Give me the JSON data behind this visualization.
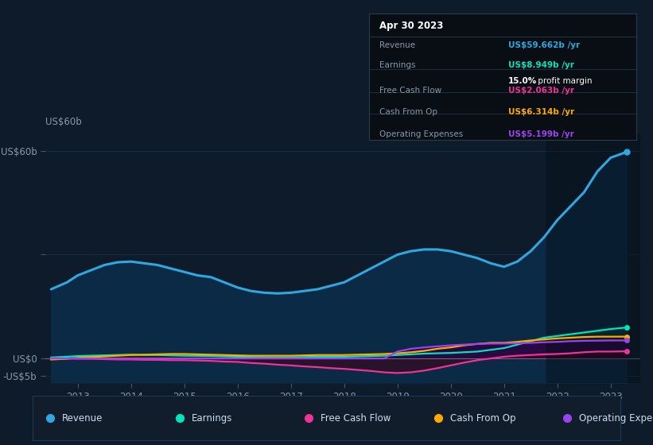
{
  "background_color": "#0d1b2a",
  "plot_bg_color": "#0d1b2a",
  "years": [
    2012.5,
    2012.8,
    2013.0,
    2013.25,
    2013.5,
    2013.75,
    2014.0,
    2014.25,
    2014.5,
    2014.75,
    2015.0,
    2015.25,
    2015.5,
    2015.75,
    2016.0,
    2016.25,
    2016.5,
    2016.75,
    2017.0,
    2017.25,
    2017.5,
    2017.75,
    2018.0,
    2018.25,
    2018.5,
    2018.75,
    2019.0,
    2019.25,
    2019.5,
    2019.75,
    2020.0,
    2020.25,
    2020.5,
    2020.75,
    2021.0,
    2021.25,
    2021.5,
    2021.75,
    2022.0,
    2022.25,
    2022.5,
    2022.75,
    2023.0,
    2023.3
  ],
  "revenue": [
    20,
    22,
    24,
    25.5,
    27,
    27.8,
    28,
    27.5,
    27,
    26,
    25,
    24,
    23.5,
    22,
    20.5,
    19.5,
    19,
    18.8,
    19,
    19.5,
    20,
    21,
    22,
    24,
    26,
    28,
    30,
    31,
    31.5,
    31.5,
    31,
    30,
    29,
    27.5,
    26.5,
    28,
    31,
    35,
    40,
    44,
    48,
    54,
    58,
    59.662
  ],
  "earnings": [
    0.3,
    0.5,
    0.7,
    0.8,
    0.9,
    1.0,
    1.1,
    1.0,
    1.0,
    0.9,
    0.8,
    0.75,
    0.7,
    0.6,
    0.5,
    0.4,
    0.3,
    0.25,
    0.3,
    0.4,
    0.5,
    0.5,
    0.5,
    0.6,
    0.7,
    0.8,
    1.0,
    1.2,
    1.4,
    1.5,
    1.6,
    1.8,
    2.0,
    2.5,
    3.0,
    4.0,
    5.0,
    6.0,
    6.5,
    7.0,
    7.5,
    8.0,
    8.5,
    8.949
  ],
  "free_cash_flow": [
    0.1,
    0.0,
    -0.1,
    -0.1,
    -0.2,
    -0.3,
    -0.3,
    -0.4,
    -0.4,
    -0.5,
    -0.5,
    -0.6,
    -0.7,
    -0.9,
    -1.0,
    -1.3,
    -1.5,
    -1.8,
    -2.0,
    -2.3,
    -2.5,
    -2.8,
    -3.0,
    -3.3,
    -3.6,
    -4.0,
    -4.2,
    -4.0,
    -3.5,
    -2.8,
    -2.0,
    -1.2,
    -0.5,
    0.0,
    0.5,
    0.8,
    1.0,
    1.2,
    1.3,
    1.5,
    1.8,
    2.0,
    2.0,
    2.063
  ],
  "cash_from_op": [
    -0.3,
    -0.1,
    0.2,
    0.4,
    0.6,
    0.8,
    1.0,
    1.1,
    1.2,
    1.3,
    1.3,
    1.2,
    1.1,
    1.0,
    0.9,
    0.8,
    0.8,
    0.8,
    0.8,
    0.9,
    1.0,
    1.0,
    1.0,
    1.1,
    1.2,
    1.3,
    1.5,
    1.8,
    2.2,
    2.8,
    3.2,
    3.8,
    4.2,
    4.5,
    4.5,
    4.8,
    5.2,
    5.5,
    5.8,
    6.0,
    6.2,
    6.3,
    6.3,
    6.314
  ],
  "operating_expenses": [
    0.0,
    0.0,
    0.0,
    0.0,
    0.0,
    0.0,
    0.0,
    0.0,
    0.0,
    0.0,
    0.0,
    0.0,
    0.0,
    0.0,
    0.0,
    0.0,
    0.0,
    0.0,
    0.0,
    0.0,
    0.0,
    0.0,
    0.0,
    0.0,
    0.0,
    0.0,
    2.0,
    2.8,
    3.2,
    3.5,
    3.8,
    4.0,
    4.2,
    4.3,
    4.3,
    4.4,
    4.5,
    4.7,
    4.8,
    5.0,
    5.1,
    5.15,
    5.2,
    5.199
  ],
  "revenue_color": "#2fa8e0",
  "earnings_color": "#00e5bb",
  "free_cash_flow_color": "#ee3399",
  "cash_from_op_color": "#ffaa00",
  "operating_expenses_color": "#9944ee",
  "fill_revenue_color": "#0a2a4a",
  "ylim": [
    -7,
    65
  ],
  "xlim_min": 2012.4,
  "xlim_max": 2023.55,
  "yticks": [
    -5,
    0,
    30,
    60
  ],
  "ytick_labels": [
    "-US$5b",
    "US$0",
    "",
    "US$60b"
  ],
  "xticks": [
    2013,
    2014,
    2015,
    2016,
    2017,
    2018,
    2019,
    2020,
    2021,
    2022,
    2023
  ],
  "grid_color": "#1e3a5a",
  "grid_alpha": 0.7,
  "legend_items": [
    {
      "label": "Revenue",
      "color": "#2fa8e0"
    },
    {
      "label": "Earnings",
      "color": "#00e5bb"
    },
    {
      "label": "Free Cash Flow",
      "color": "#ee3399"
    },
    {
      "label": "Cash From Op",
      "color": "#ffaa00"
    },
    {
      "label": "Operating Expenses",
      "color": "#9944ee"
    }
  ]
}
